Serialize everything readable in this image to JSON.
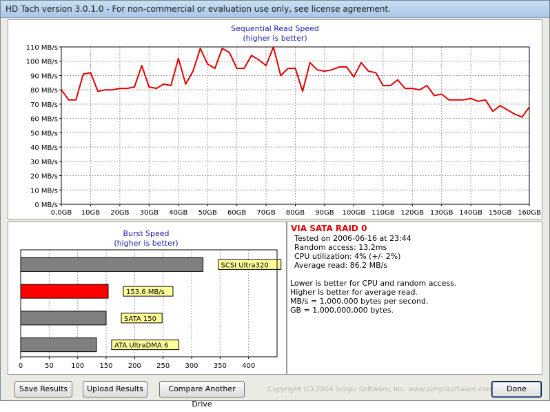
{
  "window": {
    "title": "HD Tach version 3.0.1.0  - For non-commercial or evaluation use only, see license agreement."
  },
  "chart_data": [
    {
      "type": "line",
      "title": "Sequential Read Speed",
      "subtitle": "(higher is better)",
      "xlabel": "",
      "ylabel": "",
      "xlim": [
        0,
        160
      ],
      "ylim": [
        0,
        110
      ],
      "grid": true,
      "x_ticks": [
        "0,0GB",
        "10GB",
        "20GB",
        "30GB",
        "40GB",
        "50GB",
        "60GB",
        "70GB",
        "80GB",
        "90GB",
        "100GB",
        "110GB",
        "120GB",
        "130GB",
        "140GB",
        "150GB",
        "160GB"
      ],
      "y_ticks": [
        "0 MB/s",
        "10 MB/s",
        "20 MB/s",
        "30 MB/s",
        "40 MB/s",
        "50 MB/s",
        "60 MB/s",
        "70 MB/s",
        "80 MB/s",
        "90 MB/s",
        "100 MB/s",
        "110 MB/s"
      ],
      "line_color": "#e00000",
      "series": [
        {
          "x": [
            0,
            2.5,
            5,
            7.5,
            10,
            12.5,
            15,
            17.5,
            20,
            22.5,
            25,
            27.5,
            30,
            32.5,
            35,
            37.5,
            40,
            42.5,
            45,
            47.5,
            50,
            52.5,
            55,
            57.5,
            60,
            62.5,
            65,
            67.5,
            70,
            72.5,
            75,
            77.5,
            80,
            82.5,
            85,
            87.5,
            90,
            92.5,
            95,
            97.5,
            100,
            102.5,
            105,
            107.5,
            110,
            112.5,
            115,
            117.5,
            120,
            122.5,
            125,
            127.5,
            130,
            132.5,
            135,
            137.5,
            140,
            142.5,
            145,
            147.5,
            150,
            152.5,
            155,
            157.5,
            160
          ],
          "y": [
            80,
            73,
            73,
            91,
            92,
            79,
            80,
            80,
            81,
            81,
            82,
            97,
            82,
            81,
            84,
            83,
            102,
            84,
            93,
            109,
            98,
            95,
            109,
            106,
            95,
            95,
            104,
            101,
            97,
            110,
            90,
            95,
            95,
            79,
            99,
            94,
            93,
            94,
            96,
            96,
            89,
            99,
            93,
            92,
            83,
            83,
            87,
            81,
            81,
            80,
            83,
            76,
            77,
            73,
            73,
            73,
            74,
            72,
            73,
            65,
            69,
            66,
            63,
            61,
            68
          ]
        }
      ]
    },
    {
      "type": "bar",
      "orientation": "horizontal",
      "title": "Burst Speed",
      "subtitle": "(higher is better)",
      "xlim": [
        0,
        450
      ],
      "x_ticks": [
        "0",
        "50",
        "100",
        "150",
        "200",
        "250",
        "300",
        "350",
        "400"
      ],
      "grid": true,
      "categories": [
        "SCSI Ultra320",
        "153.6 MB/s",
        "SATA 150",
        "ATA UltraDMA 6"
      ],
      "values": [
        320,
        153.6,
        150,
        133
      ],
      "colors": [
        "#808080",
        "#ff0000",
        "#808080",
        "#808080"
      ]
    }
  ],
  "drive_info": {
    "name": "VIA SATA RAID 0",
    "tested": "Tested on 2006-06-16 at 23:44",
    "random_access": "Random access: 13.2ms",
    "cpu_utilization": "CPU utilization: 4% (+/- 2%)",
    "average_read": "Average read: 86.2 MB/s",
    "notes": [
      "Lower is better for CPU and random access.",
      "Higher is better for average read.",
      "MB/s = 1,000,000 bytes per second.",
      "GB = 1,000,000,000 bytes."
    ]
  },
  "buttons": {
    "save": "Save Results",
    "upload": "Upload Results",
    "compare": "Compare Another Drive",
    "done": "Done"
  },
  "copyright": "Copyright (C) 2004 Simpli Software, Inc. www.simplisoftware.com"
}
